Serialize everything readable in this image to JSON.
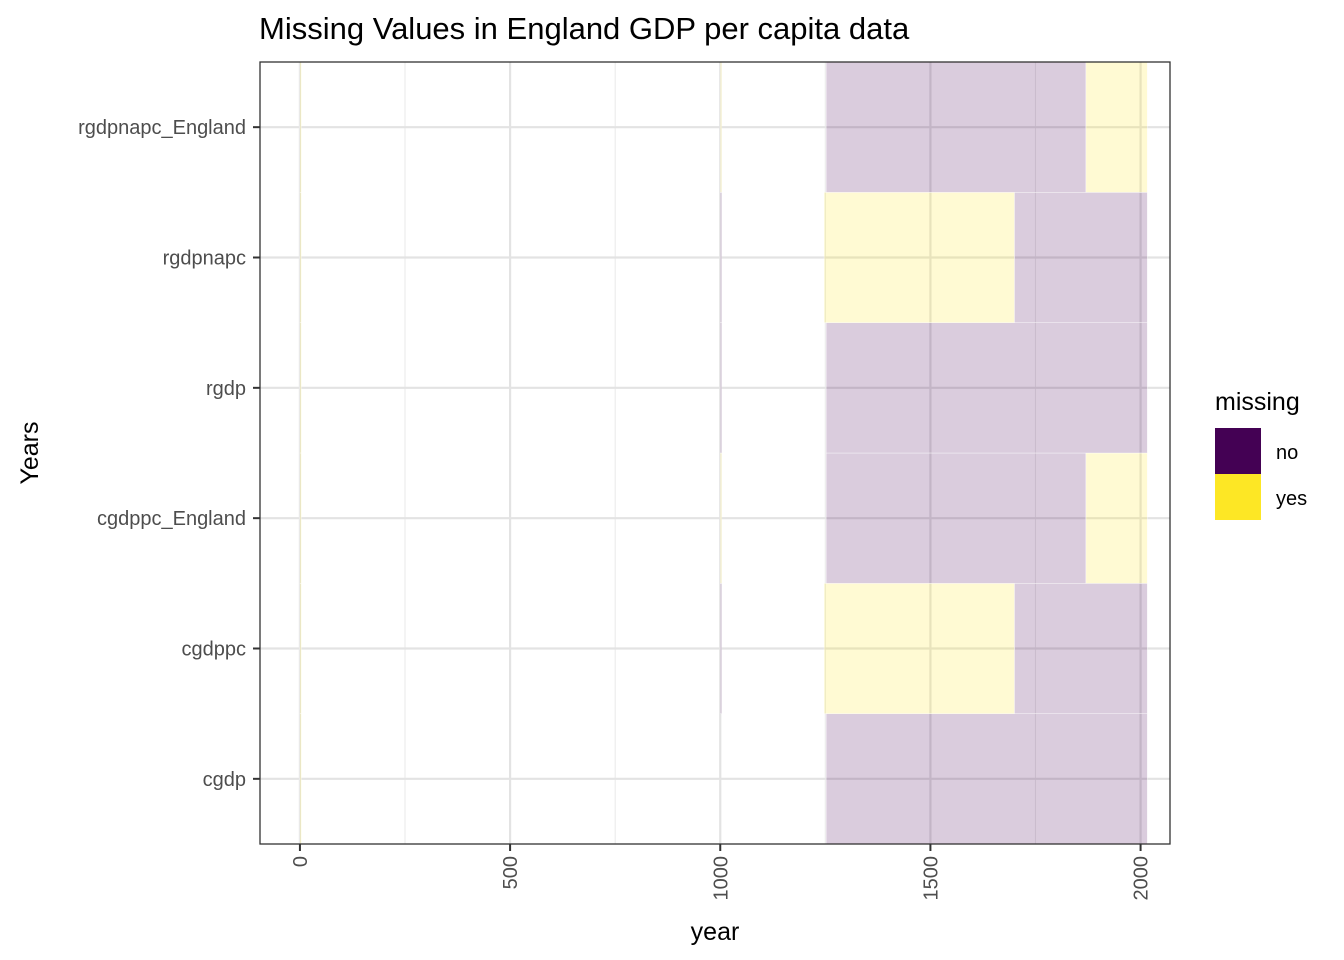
{
  "chart_data": {
    "type": "heatmap",
    "title": "Missing Values in England GDP per capita data",
    "xlabel": "year",
    "ylabel": "Years",
    "xlim": [
      -95,
      2070
    ],
    "x_ticks": [
      0,
      500,
      1000,
      1500,
      2000
    ],
    "x_tick_labels": [
      "0",
      "500",
      "1000",
      "1500",
      "2000"
    ],
    "grid": true,
    "categories": [
      "cgdp",
      "cgdppc",
      "cgdppc_England",
      "rgdp",
      "rgdpnapc",
      "rgdpnapc_England"
    ],
    "legend": {
      "title": "missing",
      "position": "right",
      "entries": [
        {
          "label": "no",
          "color": "#440154"
        },
        {
          "label": "yes",
          "color": "#FDE725"
        }
      ]
    },
    "tile_alpha": 0.2,
    "series": [
      {
        "variable": "cgdp",
        "segments": [
          {
            "missing": "yes",
            "x_start": 0,
            "x_end": 1
          },
          {
            "missing": "no",
            "x_start": 1252,
            "x_end": 2016
          }
        ]
      },
      {
        "variable": "cgdppc",
        "segments": [
          {
            "missing": "yes",
            "x_start": 0,
            "x_end": 1
          },
          {
            "missing": "no",
            "x_start": 1000,
            "x_end": 1001
          },
          {
            "missing": "yes",
            "x_start": 1247,
            "x_end": 1700
          },
          {
            "missing": "no",
            "x_start": 1700,
            "x_end": 2016
          }
        ]
      },
      {
        "variable": "cgdppc_England",
        "segments": [
          {
            "missing": "yes",
            "x_start": 0,
            "x_end": 1
          },
          {
            "missing": "yes",
            "x_start": 1000,
            "x_end": 1001
          },
          {
            "missing": "no",
            "x_start": 1252,
            "x_end": 1870
          },
          {
            "missing": "yes",
            "x_start": 1870,
            "x_end": 2016
          }
        ]
      },
      {
        "variable": "rgdp",
        "segments": [
          {
            "missing": "yes",
            "x_start": 0,
            "x_end": 1
          },
          {
            "missing": "no",
            "x_start": 1000,
            "x_end": 1001
          },
          {
            "missing": "no",
            "x_start": 1252,
            "x_end": 2016
          }
        ]
      },
      {
        "variable": "rgdpnapc",
        "segments": [
          {
            "missing": "yes",
            "x_start": 0,
            "x_end": 1
          },
          {
            "missing": "no",
            "x_start": 1000,
            "x_end": 1001
          },
          {
            "missing": "yes",
            "x_start": 1247,
            "x_end": 1700
          },
          {
            "missing": "no",
            "x_start": 1700,
            "x_end": 2016
          }
        ]
      },
      {
        "variable": "rgdpnapc_England",
        "segments": [
          {
            "missing": "yes",
            "x_start": 0,
            "x_end": 1
          },
          {
            "missing": "yes",
            "x_start": 1000,
            "x_end": 1001
          },
          {
            "missing": "no",
            "x_start": 1252,
            "x_end": 1870
          },
          {
            "missing": "yes",
            "x_start": 1870,
            "x_end": 2016
          }
        ]
      }
    ]
  }
}
